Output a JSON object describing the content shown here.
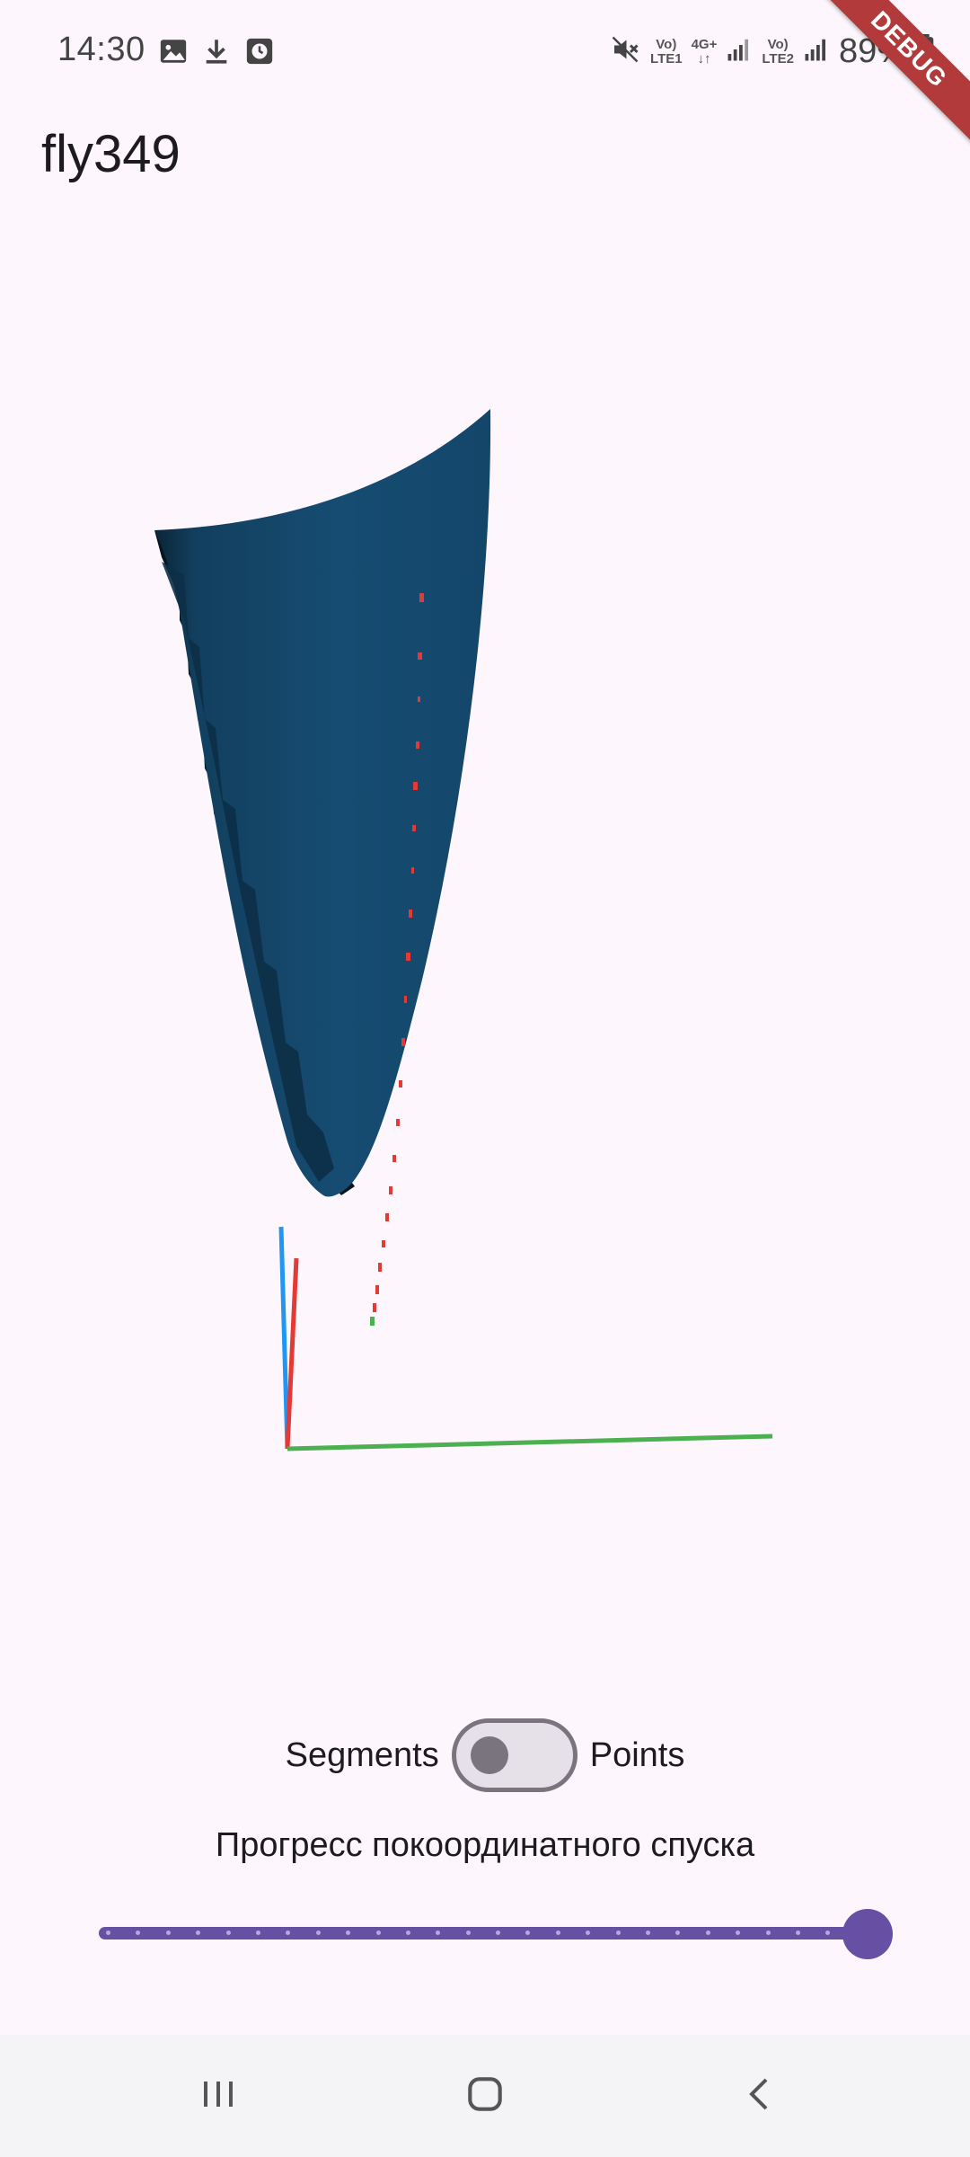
{
  "status_bar": {
    "time": "14:30",
    "left_icons": [
      "image-icon",
      "download-icon",
      "clock-app-icon"
    ],
    "right_icons": [
      "mute-icon",
      "volte-lte1-icon",
      "4g-plus-icon",
      "signal-icon",
      "volte-lte2-icon",
      "signal-icon",
      "battery-icon"
    ],
    "sim1_label_top": "Vo)",
    "sim1_label_bottom": "LTE1",
    "data_label": "4G+",
    "sim2_label_top": "Vo)",
    "sim2_label_bottom": "LTE2",
    "battery": "89%"
  },
  "debug_banner": "DEBUG",
  "app_bar": {
    "title": "fly349"
  },
  "plot": {
    "surface_color": "#154a6e",
    "axis_colors": {
      "x": "#4caf50",
      "y": "#e53935",
      "z": "#2196f3"
    },
    "path_color": "#e53935"
  },
  "controls": {
    "toggle_left_label": "Segments",
    "toggle_right_label": "Points",
    "toggle_state": "off",
    "progress_label": "Прогресс покоординатного спуска",
    "slider_value": 1.0,
    "slider_divisions": 25
  },
  "nav_bar": {
    "recents": "recents-icon",
    "home": "home-icon",
    "back": "back-icon"
  },
  "colors": {
    "background": "#fdf7fd",
    "accent": "#6750a4",
    "outline": "#79747e"
  }
}
